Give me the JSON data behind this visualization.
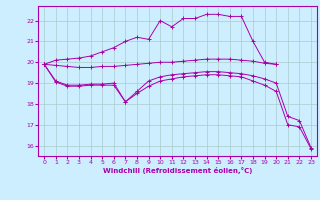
{
  "xlabel": "Windchill (Refroidissement éolien,°C)",
  "background_color": "#cceeff",
  "grid_color": "#aacccc",
  "line_color": "#aa00aa",
  "xlim": [
    -0.5,
    23.5
  ],
  "ylim": [
    15.5,
    22.7
  ],
  "yticks": [
    16,
    17,
    18,
    19,
    20,
    21,
    22
  ],
  "xticks": [
    0,
    1,
    2,
    3,
    4,
    5,
    6,
    7,
    8,
    9,
    10,
    11,
    12,
    13,
    14,
    15,
    16,
    17,
    18,
    19,
    20,
    21,
    22,
    23
  ],
  "series": [
    {
      "x": [
        0,
        1,
        2,
        3,
        4,
        5,
        6,
        7,
        8,
        9,
        10,
        11,
        12,
        13,
        14,
        15,
        16,
        17,
        18,
        19,
        20
      ],
      "y": [
        19.9,
        20.1,
        20.15,
        20.2,
        20.3,
        20.5,
        20.7,
        21.0,
        21.2,
        21.1,
        22.0,
        21.7,
        22.1,
        22.1,
        22.3,
        22.3,
        22.2,
        22.2,
        21.0,
        20.0,
        19.9
      ]
    },
    {
      "x": [
        0,
        1,
        2,
        3,
        4,
        5,
        6,
        7,
        8,
        9,
        10,
        11,
        12,
        13,
        14,
        15,
        16,
        17,
        18,
        19,
        20
      ],
      "y": [
        19.9,
        19.85,
        19.8,
        19.75,
        19.75,
        19.8,
        19.8,
        19.85,
        19.9,
        19.95,
        20.0,
        20.0,
        20.05,
        20.1,
        20.15,
        20.15,
        20.15,
        20.1,
        20.05,
        19.95,
        19.9
      ]
    },
    {
      "x": [
        0,
        1,
        2,
        3,
        4,
        5,
        6,
        7,
        8,
        9,
        10,
        11,
        12,
        13,
        14,
        15,
        16,
        17,
        18,
        19,
        20,
        21,
        22,
        23
      ],
      "y": [
        19.9,
        19.1,
        18.9,
        18.9,
        18.95,
        18.95,
        19.0,
        18.1,
        18.6,
        19.1,
        19.3,
        19.4,
        19.45,
        19.5,
        19.55,
        19.55,
        19.5,
        19.45,
        19.35,
        19.2,
        19.0,
        17.4,
        17.2,
        15.9
      ]
    },
    {
      "x": [
        0,
        1,
        2,
        3,
        4,
        5,
        6,
        7,
        8,
        9,
        10,
        11,
        12,
        13,
        14,
        15,
        16,
        17,
        18,
        19,
        20,
        21,
        22,
        23
      ],
      "y": [
        19.9,
        19.05,
        18.85,
        18.85,
        18.9,
        18.9,
        18.9,
        18.1,
        18.5,
        18.85,
        19.1,
        19.2,
        19.3,
        19.35,
        19.4,
        19.4,
        19.35,
        19.3,
        19.1,
        18.9,
        18.6,
        17.0,
        16.9,
        15.85
      ]
    }
  ]
}
